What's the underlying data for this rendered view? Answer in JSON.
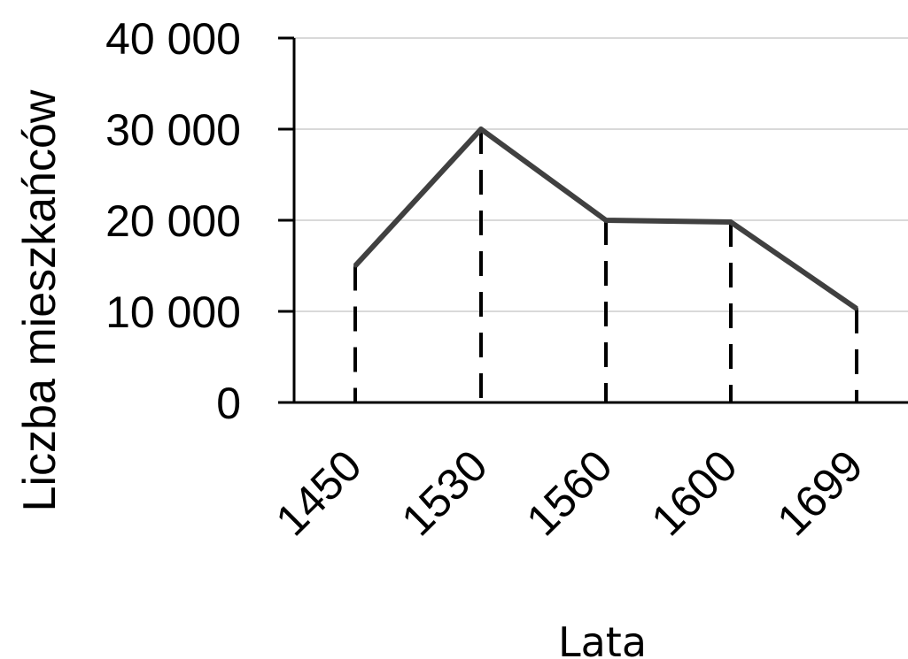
{
  "chart_data": {
    "type": "line",
    "title": "",
    "xlabel": "Lata",
    "ylabel": "Liczba mieszkańców",
    "categories": [
      "1450",
      "1530",
      "1560",
      "1600",
      "1699"
    ],
    "series": [
      {
        "values": [
          15000,
          30000,
          20000,
          19800,
          10300
        ]
      }
    ],
    "ylim": [
      0,
      40000
    ],
    "yticks": [
      {
        "value": 0,
        "label": "0"
      },
      {
        "value": 10000,
        "label": "10 000"
      },
      {
        "value": 20000,
        "label": "20 000"
      },
      {
        "value": 30000,
        "label": "30 000"
      },
      {
        "value": 40000,
        "label": "40 000"
      }
    ],
    "grid": true,
    "drop_lines": "dashed",
    "legend": "none",
    "colors": {
      "line": "#404040",
      "drop": "#000000",
      "grid": "#d9d9d9",
      "axis": "#000000"
    }
  }
}
